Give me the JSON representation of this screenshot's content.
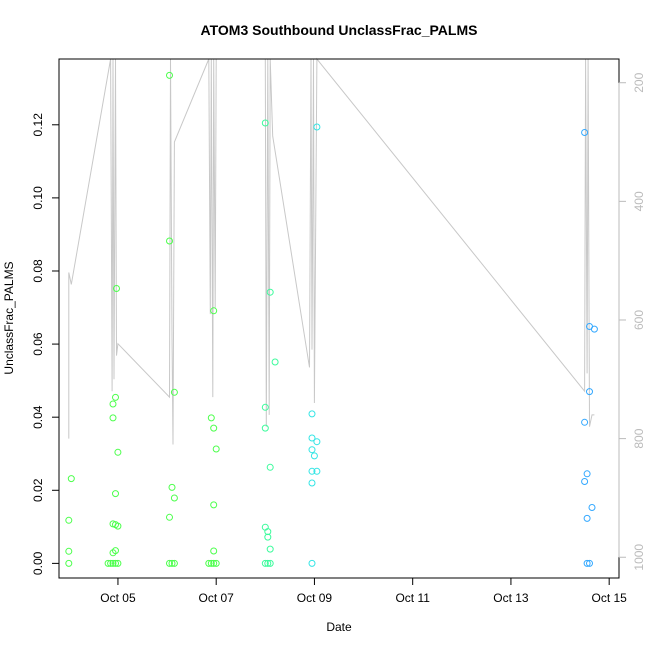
{
  "chart_data": {
    "type": "scatter",
    "title": "ATOM3 Southbound UnclassFrac_PALMS",
    "xlabel": "Date",
    "ylabel": "UnclassFrac_PALMS",
    "x_tick_labels": [
      "Oct 05",
      "Oct 07",
      "Oct 09",
      "Oct 11",
      "Oct 13",
      "Oct 15"
    ],
    "x_tick_values": [
      5,
      7,
      9,
      11,
      13,
      15
    ],
    "xlim": [
      3.8,
      15.2
    ],
    "y_tick_labels": [
      "0.00",
      "0.02",
      "0.04",
      "0.06",
      "0.08",
      "0.10",
      "0.12"
    ],
    "y_tick_values": [
      0.0,
      0.02,
      0.04,
      0.06,
      0.08,
      0.1,
      0.12
    ],
    "ylim": [
      -0.004,
      0.138
    ],
    "y2_tick_labels": [
      "200",
      "400",
      "600",
      "800",
      "1000"
    ],
    "y2_tick_values": [
      200,
      400,
      600,
      800,
      1000
    ],
    "y2lim": [
      1035,
      160
    ],
    "grid": false,
    "point_colors": [
      "#4cff4c",
      "#3cfb9c",
      "#33e5e5",
      "#33a8ff"
    ],
    "line_color": "#c8c8c8",
    "series": [
      {
        "points": [
          [
            4.0,
            0.0
          ],
          [
            4.0,
            0.0033
          ],
          [
            4.0,
            0.0118
          ],
          [
            4.05,
            0.0232
          ],
          [
            4.8,
            0.0
          ],
          [
            4.85,
            0.0
          ],
          [
            4.9,
            0.0
          ],
          [
            4.95,
            0.0
          ],
          [
            5.0,
            0.0
          ],
          [
            4.9,
            0.0029
          ],
          [
            4.95,
            0.0035
          ],
          [
            4.9,
            0.0108
          ],
          [
            4.95,
            0.0106
          ],
          [
            5.0,
            0.0102
          ],
          [
            4.95,
            0.0191
          ],
          [
            5.0,
            0.0304
          ],
          [
            4.9,
            0.0398
          ],
          [
            4.9,
            0.0436
          ],
          [
            4.95,
            0.0454
          ],
          [
            4.97,
            0.0752
          ],
          [
            6.05,
            0.0
          ],
          [
            6.1,
            0.0
          ],
          [
            6.15,
            0.0
          ],
          [
            6.05,
            0.0126
          ],
          [
            6.1,
            0.0208
          ],
          [
            6.15,
            0.0179
          ],
          [
            6.15,
            0.0468
          ],
          [
            6.05,
            0.0882
          ],
          [
            6.05,
            0.1335
          ],
          [
            6.85,
            0.0
          ],
          [
            6.9,
            0.0
          ],
          [
            6.95,
            0.0
          ],
          [
            7.0,
            0.0
          ],
          [
            6.95,
            0.0034
          ],
          [
            6.95,
            0.016
          ],
          [
            7.0,
            0.0313
          ],
          [
            6.95,
            0.037
          ],
          [
            6.9,
            0.0398
          ],
          [
            6.95,
            0.0691
          ]
        ]
      },
      {
        "points": [
          [
            8.0,
            0.0
          ],
          [
            8.05,
            0.0
          ],
          [
            8.1,
            0.0
          ],
          [
            8.1,
            0.0039
          ],
          [
            8.05,
            0.0072
          ],
          [
            8.05,
            0.0087
          ],
          [
            8.0,
            0.0099
          ],
          [
            8.1,
            0.0263
          ],
          [
            8.0,
            0.037
          ],
          [
            8.0,
            0.0427
          ],
          [
            8.2,
            0.0551
          ],
          [
            8.1,
            0.0742
          ],
          [
            8.0,
            0.1205
          ],
          [
            8.95,
            0.0
          ],
          [
            8.95,
            0.022
          ],
          [
            8.95,
            0.0252
          ],
          [
            9.05,
            0.0252
          ],
          [
            9.0,
            0.0294
          ],
          [
            8.95,
            0.0311
          ],
          [
            8.95,
            0.0343
          ],
          [
            9.05,
            0.0333
          ],
          [
            8.95,
            0.0409
          ],
          [
            9.05,
            0.1194
          ]
        ]
      },
      {
        "points": [
          [
            14.55,
            0.0
          ],
          [
            14.6,
            0.0
          ],
          [
            14.5,
            0.0224
          ],
          [
            14.55,
            0.0245
          ],
          [
            14.55,
            0.0123
          ],
          [
            14.65,
            0.0153
          ],
          [
            14.5,
            0.0386
          ],
          [
            14.6,
            0.047
          ],
          [
            14.6,
            0.0648
          ],
          [
            14.7,
            0.0641
          ],
          [
            14.5,
            0.1179
          ]
        ]
      }
    ],
    "altitude_track": {
      "x": [
        4.0,
        4.0,
        4.0,
        4.05,
        4.85,
        4.88,
        4.9,
        4.92,
        4.95,
        4.97,
        5.0,
        6.05,
        6.07,
        6.1,
        6.12,
        6.15,
        6.85,
        6.88,
        6.9,
        6.93,
        6.95,
        6.98,
        7.0,
        8.0,
        8.02,
        8.05,
        8.08,
        8.1,
        8.15,
        8.9,
        8.93,
        8.95,
        8.98,
        9.0,
        9.05,
        14.5,
        14.52,
        14.55,
        14.57,
        14.6,
        14.65,
        14.7
      ],
      "y": [
        540,
        800,
        520,
        540,
        160,
        720,
        160,
        700,
        160,
        660,
        640,
        730,
        160,
        630,
        810,
        300,
        160,
        590,
        160,
        730,
        160,
        580,
        160,
        160,
        780,
        160,
        760,
        160,
        290,
        680,
        160,
        650,
        160,
        740,
        160,
        720,
        160,
        690,
        160,
        780,
        760,
        760
      ]
    }
  }
}
